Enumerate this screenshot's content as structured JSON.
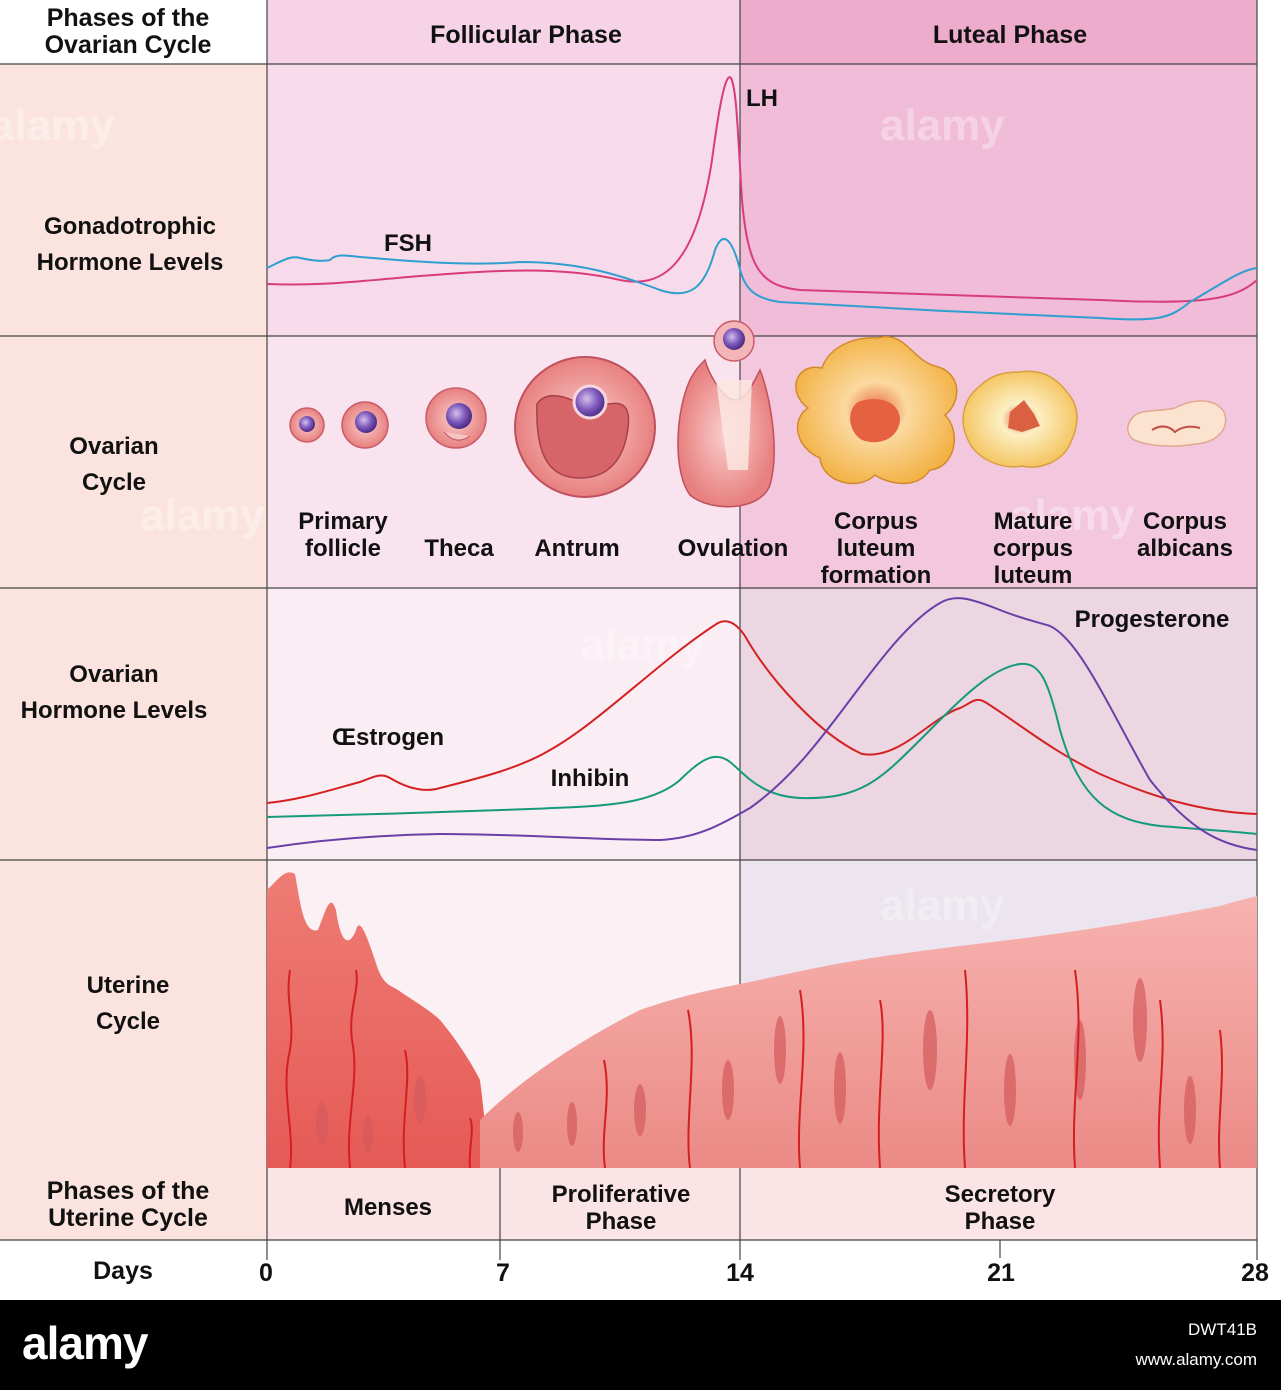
{
  "header": {
    "ovarian_phase_label": "Phases of the Ovarian Cycle",
    "follicular": "Follicular Phase",
    "luteal": "Luteal Phase"
  },
  "rows": {
    "gonadotrophic": "Gonadotrophic Hormone Levels",
    "ovarian_cycle": "Ovarian Cycle",
    "ovarian_hormone": "Ovarian Hormone Levels",
    "uterine_cycle": "Uterine Cycle",
    "uterine_phases": "Phases of the Uterine Cycle",
    "days": "Days"
  },
  "curve_labels": {
    "lh": "LH",
    "fsh": "FSH",
    "estrogen": "Œstrogen",
    "inhibin": "Inhibin",
    "progesterone": "Progesterone"
  },
  "stages": [
    {
      "text": "Primary follicle"
    },
    {
      "text": "Theca"
    },
    {
      "text": "Antrum"
    },
    {
      "text": "Ovulation"
    },
    {
      "text": "Corpus luteum formation"
    },
    {
      "text": "Mature corpus luteum"
    },
    {
      "text": "Corpus albicans"
    }
  ],
  "uterine_phases": {
    "menses": "Menses",
    "proliferative": "Proliferative Phase",
    "secretory": "Secretory Phase"
  },
  "days": [
    "0",
    "7",
    "14",
    "21",
    "28"
  ],
  "colors": {
    "lh": "#d83c7c",
    "fsh": "#2f9fd0",
    "estrogen": "#d42222",
    "inhibin": "#169a7c",
    "progesterone": "#6a3fa8",
    "follicular_bg": "#f8dcea",
    "luteal_bg": "#f1bcd7",
    "label_bg": "#fbe6e2"
  },
  "watermark": {
    "logo": "alamy",
    "image_id": "DWT41B",
    "url": "www.alamy.com"
  }
}
